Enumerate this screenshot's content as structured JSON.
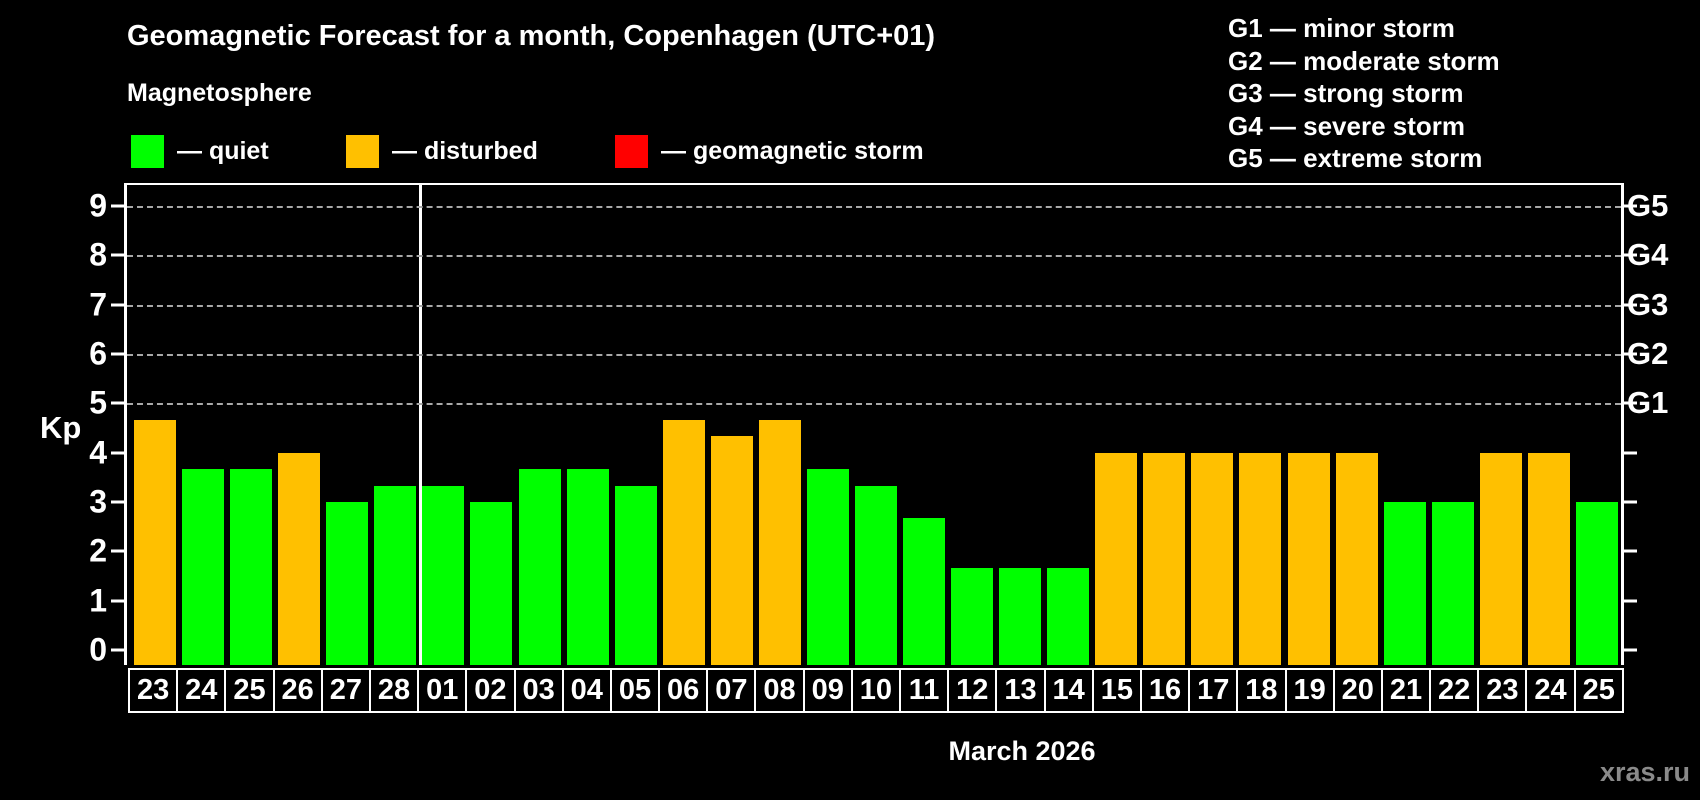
{
  "header": {
    "title": "Geomagnetic Forecast for a month, Copenhagen (UTC+01)",
    "subtitle": "Magnetosphere"
  },
  "legend": [
    {
      "label": "— quiet",
      "color": "#00ff00",
      "status": "quiet"
    },
    {
      "label": "— disturbed",
      "color": "#ffc000",
      "status": "disturbed"
    },
    {
      "label": "— geomagnetic storm",
      "color": "#ff0000",
      "status": "storm"
    }
  ],
  "g_legend": [
    "G1 — minor storm",
    "G2 — moderate storm",
    "G3 — strong storm",
    "G4 — severe storm",
    "G5 — extreme storm"
  ],
  "footer": {
    "watermark": "xras.ru"
  },
  "chart_data": {
    "type": "bar",
    "title": "Geomagnetic Forecast for a month, Copenhagen (UTC+01)",
    "xlabel": "March 2026",
    "ylabel": "Kp",
    "ylim": [
      0,
      9
    ],
    "y_ticks": [
      "0",
      "1",
      "2",
      "3",
      "4",
      "5",
      "6",
      "7",
      "8",
      "9"
    ],
    "gridlines_at": [
      5,
      6,
      7,
      8,
      9
    ],
    "grid": "dashed horizontal at storm levels only",
    "legend_position": "top-left and top-right",
    "right_axis": [
      {
        "label": "G1",
        "kp": 5
      },
      {
        "label": "G2",
        "kp": 6
      },
      {
        "label": "G3",
        "kp": 7
      },
      {
        "label": "G4",
        "kp": 8
      },
      {
        "label": "G5",
        "kp": 9
      }
    ],
    "month_divider_after_index": 5,
    "categories": [
      "23",
      "24",
      "25",
      "26",
      "27",
      "28",
      "01",
      "02",
      "03",
      "04",
      "05",
      "06",
      "07",
      "08",
      "09",
      "10",
      "11",
      "12",
      "13",
      "14",
      "15",
      "16",
      "17",
      "18",
      "19",
      "20",
      "21",
      "22",
      "23",
      "24",
      "25"
    ],
    "values": [
      4.67,
      3.67,
      3.67,
      4.0,
      3.0,
      3.33,
      3.33,
      3.0,
      3.67,
      3.67,
      3.33,
      4.67,
      4.33,
      4.67,
      3.67,
      3.33,
      2.67,
      1.67,
      1.67,
      1.67,
      4.0,
      4.0,
      4.0,
      4.0,
      4.0,
      4.0,
      3.0,
      3.0,
      4.0,
      4.0,
      3.0
    ],
    "days": [
      {
        "day": "23",
        "kp": 4.67,
        "status": "disturbed"
      },
      {
        "day": "24",
        "kp": 3.67,
        "status": "quiet"
      },
      {
        "day": "25",
        "kp": 3.67,
        "status": "quiet"
      },
      {
        "day": "26",
        "kp": 4.0,
        "status": "disturbed"
      },
      {
        "day": "27",
        "kp": 3.0,
        "status": "quiet"
      },
      {
        "day": "28",
        "kp": 3.33,
        "status": "quiet"
      },
      {
        "day": "01",
        "kp": 3.33,
        "status": "quiet"
      },
      {
        "day": "02",
        "kp": 3.0,
        "status": "quiet"
      },
      {
        "day": "03",
        "kp": 3.67,
        "status": "quiet"
      },
      {
        "day": "04",
        "kp": 3.67,
        "status": "quiet"
      },
      {
        "day": "05",
        "kp": 3.33,
        "status": "quiet"
      },
      {
        "day": "06",
        "kp": 4.67,
        "status": "disturbed"
      },
      {
        "day": "07",
        "kp": 4.33,
        "status": "disturbed"
      },
      {
        "day": "08",
        "kp": 4.67,
        "status": "disturbed"
      },
      {
        "day": "09",
        "kp": 3.67,
        "status": "quiet"
      },
      {
        "day": "10",
        "kp": 3.33,
        "status": "quiet"
      },
      {
        "day": "11",
        "kp": 2.67,
        "status": "quiet"
      },
      {
        "day": "12",
        "kp": 1.67,
        "status": "quiet"
      },
      {
        "day": "13",
        "kp": 1.67,
        "status": "quiet"
      },
      {
        "day": "14",
        "kp": 1.67,
        "status": "quiet"
      },
      {
        "day": "15",
        "kp": 4.0,
        "status": "disturbed"
      },
      {
        "day": "16",
        "kp": 4.0,
        "status": "disturbed"
      },
      {
        "day": "17",
        "kp": 4.0,
        "status": "disturbed"
      },
      {
        "day": "18",
        "kp": 4.0,
        "status": "disturbed"
      },
      {
        "day": "19",
        "kp": 4.0,
        "status": "disturbed"
      },
      {
        "day": "20",
        "kp": 4.0,
        "status": "disturbed"
      },
      {
        "day": "21",
        "kp": 3.0,
        "status": "quiet"
      },
      {
        "day": "22",
        "kp": 3.0,
        "status": "quiet"
      },
      {
        "day": "23",
        "kp": 4.0,
        "status": "disturbed"
      },
      {
        "day": "24",
        "kp": 4.0,
        "status": "disturbed"
      },
      {
        "day": "25",
        "kp": 3.0,
        "status": "quiet"
      }
    ]
  }
}
